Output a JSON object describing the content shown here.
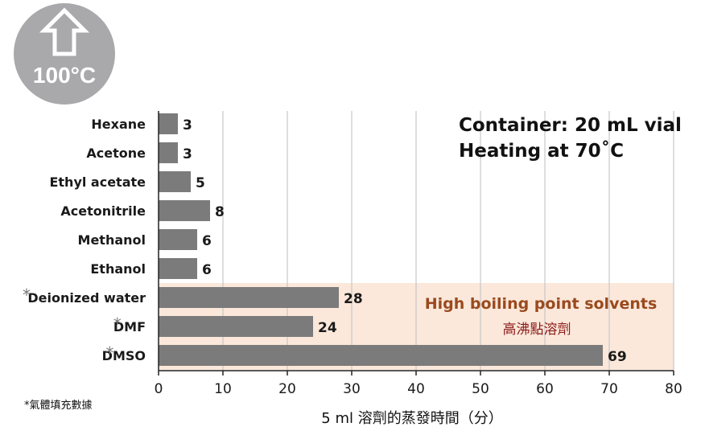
{
  "badge": {
    "icon": "up-arrow-icon",
    "label": "100°C",
    "color": "#a9a9ab"
  },
  "info": {
    "line1": "Container: 20 mL vial",
    "line2": "Heating at 70˚C"
  },
  "highlight": {
    "label_en": "High boiling point solvents",
    "label_zh": "高沸點溶劑",
    "fill": "#fbe8da",
    "color_en": "#9a4a1e",
    "color_zh": "#8b1a1a"
  },
  "footnote": "*氣體填充數據",
  "chart_data": {
    "type": "bar",
    "orientation": "horizontal",
    "categories": [
      "Hexane",
      "Acetone",
      "Ethyl acetate",
      "Acetonitrile",
      "Methanol",
      "Ethanol",
      "Deionized water",
      "DMF",
      "DMSO"
    ],
    "values": [
      3,
      3,
      5,
      8,
      6,
      6,
      28,
      24,
      69
    ],
    "starred": [
      false,
      false,
      false,
      false,
      false,
      false,
      true,
      true,
      true
    ],
    "star_symbol": "*",
    "xlabel": "5 ml 溶劑的蒸發時間（分）",
    "xlim": [
      0,
      80
    ],
    "xticks": [
      0,
      10,
      20,
      30,
      40,
      50,
      60,
      70,
      80
    ],
    "grid": true,
    "bar_color": "#7b7b7b",
    "highlight_categories": [
      "Deionized water",
      "DMF",
      "DMSO"
    ]
  }
}
